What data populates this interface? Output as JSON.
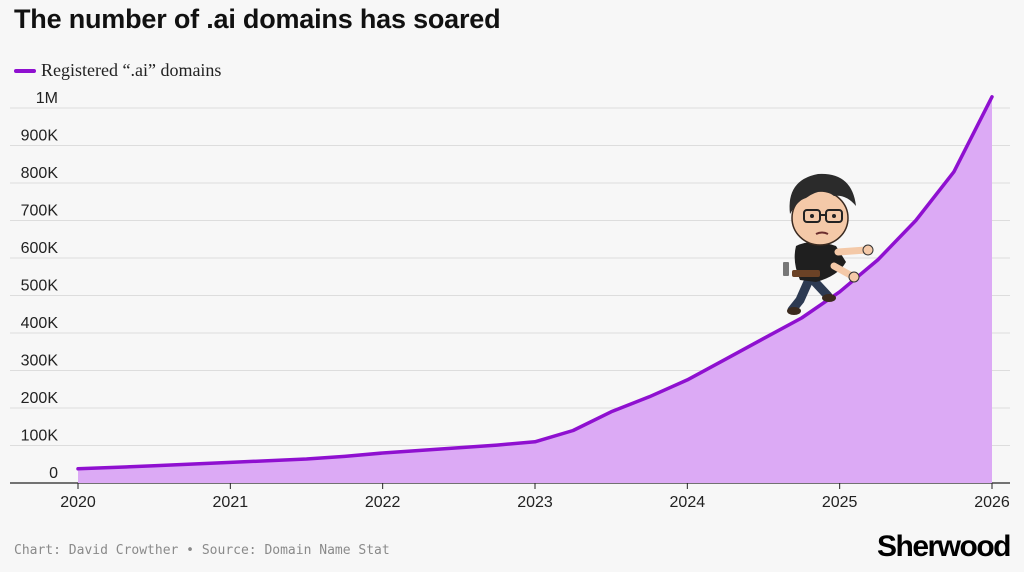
{
  "title": "The number of .ai domains has soared",
  "legend": {
    "label": "Registered “.ai” domains"
  },
  "credit": "Chart: David Crowther • Source: Domain Name Stat",
  "brand": "Sherwood",
  "colors": {
    "line": "#8f10d0",
    "fill": "#dcaaf5",
    "grid": "#dddddd",
    "background": "#f7f7f7"
  },
  "illustration": "cartoon-climber-with-glasses",
  "chart_data": {
    "type": "area",
    "title": "The number of .ai domains has soared",
    "xlabel": "",
    "ylabel": "",
    "xlim": [
      2020,
      2026
    ],
    "ylim": [
      0,
      1000000
    ],
    "grid": true,
    "legend_position": "top-left",
    "x_ticks": [
      "2020",
      "2021",
      "2022",
      "2023",
      "2024",
      "2025",
      "2026"
    ],
    "y_ticks": [
      "0",
      "100K",
      "200K",
      "300K",
      "400K",
      "500K",
      "600K",
      "700K",
      "800K",
      "900K",
      "1M"
    ],
    "series": [
      {
        "name": "Registered “.ai” domains",
        "x": [
          2020.0,
          2020.5,
          2021.0,
          2021.5,
          2021.75,
          2022.0,
          2022.5,
          2022.75,
          2023.0,
          2023.25,
          2023.5,
          2023.75,
          2024.0,
          2024.25,
          2024.5,
          2024.75,
          2025.0,
          2025.25,
          2025.5,
          2025.75,
          2026.0
        ],
        "y": [
          38000,
          46000,
          55000,
          64000,
          71000,
          80000,
          94000,
          101000,
          110000,
          140000,
          190000,
          230000,
          275000,
          330000,
          385000,
          440000,
          510000,
          595000,
          700000,
          830000,
          1030000
        ]
      }
    ]
  }
}
